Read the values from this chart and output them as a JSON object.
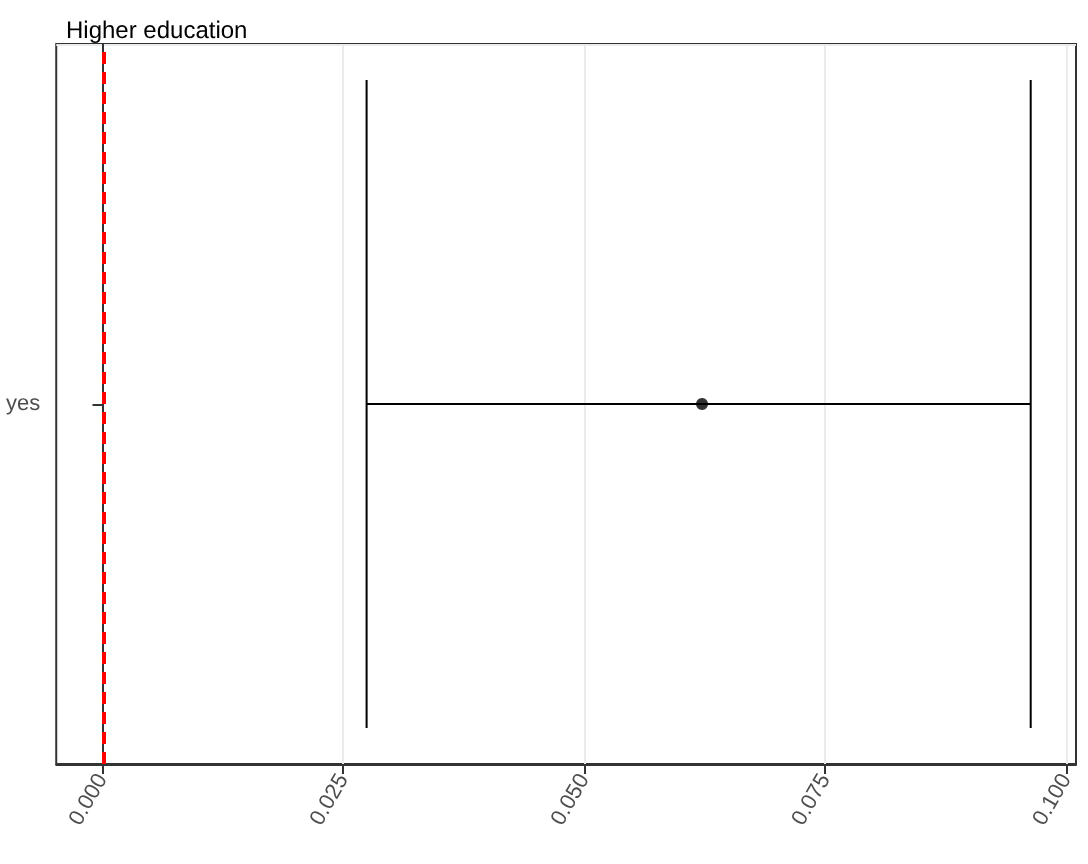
{
  "chart_data": {
    "type": "scatter",
    "title": "Higher education",
    "orientation": "horizontal",
    "categories": [
      "yes"
    ],
    "series": [
      {
        "color": "#000000",
        "values": [
          0.0622
        ],
        "errors": [
          [
            0.0274,
            0.0963
          ]
        ]
      }
    ],
    "xlim": [
      -0.0048,
      0.101
    ],
    "xticks": [
      {
        "value": 0,
        "label": "0.000"
      },
      {
        "value": 0.025,
        "label": "0.025"
      },
      {
        "value": 0.05,
        "label": "0.050"
      },
      {
        "value": 0.075,
        "label": "0.075"
      },
      {
        "value": 0.1,
        "label": "0.100"
      }
    ],
    "ref_lines": [
      {
        "axis": "x",
        "value": 0,
        "color": "#ff0000",
        "line_style": "dashed"
      }
    ],
    "grid": true,
    "marker": "circle"
  }
}
